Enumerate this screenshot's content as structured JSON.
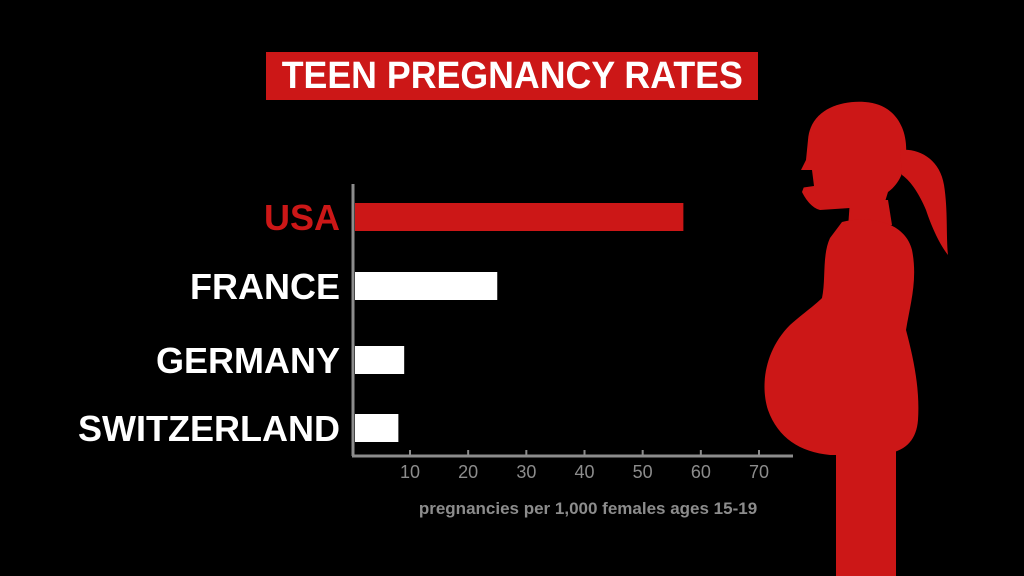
{
  "title": "TEEN PREGNANCY RATES",
  "colors": {
    "background": "#000000",
    "highlight": "#cc1717",
    "bar_default": "#ffffff",
    "axis": "#8c8c8c",
    "axis_label": "#8c8c8c"
  },
  "chart_data": {
    "type": "bar",
    "orientation": "horizontal",
    "title": "TEEN PREGNANCY RATES",
    "categories": [
      "USA",
      "FRANCE",
      "GERMANY",
      "SWITZERLAND"
    ],
    "values": [
      57,
      25,
      9,
      8
    ],
    "highlight_category": "USA",
    "xlabel": "pregnancies per 1,000 females ages 15-19",
    "ylabel": "",
    "xlim": [
      0,
      70
    ],
    "xticks": [
      10,
      20,
      30,
      40,
      50,
      60,
      70
    ],
    "grid": false,
    "legend": "none"
  },
  "illustration": {
    "icon": "pregnant-woman-silhouette-icon"
  }
}
